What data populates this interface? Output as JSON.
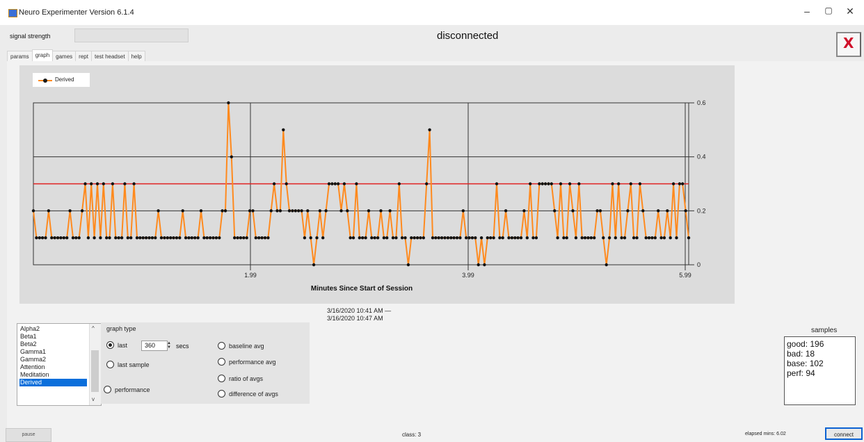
{
  "window": {
    "title": "Neuro Experimenter Version 6.1.4"
  },
  "header": {
    "signal_label": "signal strength",
    "status": "disconnected"
  },
  "tabs": [
    {
      "label": "params"
    },
    {
      "label": "graph"
    },
    {
      "label": "games"
    },
    {
      "label": "rept"
    },
    {
      "label": "test headset"
    },
    {
      "label": "help"
    }
  ],
  "legend": {
    "label": "Derived"
  },
  "date_range": {
    "start": "3/16/2020 10:41 AM —",
    "end": "3/16/2020 10:47 AM"
  },
  "signal_list": {
    "items": [
      "Alpha2",
      "Beta1",
      "Beta2",
      "Gamma1",
      "Gamma2",
      "Attention",
      "Meditation",
      "Derived"
    ],
    "selected": "Derived"
  },
  "graph_type": {
    "title": "graph type",
    "last_label": "last",
    "last_value": "360",
    "secs_label": "secs",
    "last_sample_label": "last sample",
    "performance_label": "performance",
    "baseline_avg_label": "baseline avg",
    "performance_avg_label": "performance avg",
    "ratio_label": "ratio of avgs",
    "difference_label": "difference of avgs",
    "selected": "last"
  },
  "samples": {
    "title": "samples",
    "good": "good: 196",
    "bad": "bad:  18",
    "base": "base: 102",
    "perf": "perf: 94"
  },
  "footer": {
    "pause_label": "pause",
    "class_label": "class:  3",
    "elapsed_label": "elapsed mins: 6.02",
    "connect_label": "connect"
  },
  "chart_data": {
    "type": "line",
    "xlabel": "Minutes Since Start of Session",
    "x_ticks": [
      "1.99",
      "3.99",
      "5.99"
    ],
    "y_ticks": [
      "0.6",
      "0.4",
      "0.2",
      "0"
    ],
    "ylim": [
      0,
      0.6
    ],
    "grid": true,
    "series_color": "#ff8a1e",
    "threshold": {
      "value": 0.3,
      "color": "#e02020"
    },
    "series": [
      {
        "name": "Derived",
        "values": [
          0.2,
          0.1,
          0.1,
          0.1,
          0.1,
          0.2,
          0.1,
          0.1,
          0.1,
          0.1,
          0.1,
          0.1,
          0.2,
          0.1,
          0.1,
          0.1,
          0.2,
          0.3,
          0.1,
          0.3,
          0.1,
          0.3,
          0.1,
          0.3,
          0.1,
          0.1,
          0.3,
          0.1,
          0.1,
          0.1,
          0.3,
          0.1,
          0.1,
          0.3,
          0.1,
          0.1,
          0.1,
          0.1,
          0.1,
          0.1,
          0.1,
          0.2,
          0.1,
          0.1,
          0.1,
          0.1,
          0.1,
          0.1,
          0.1,
          0.2,
          0.1,
          0.1,
          0.1,
          0.1,
          0.1,
          0.2,
          0.1,
          0.1,
          0.1,
          0.1,
          0.1,
          0.1,
          0.2,
          0.2,
          0.6,
          0.4,
          0.1,
          0.1,
          0.1,
          0.1,
          0.1,
          0.2,
          0.2,
          0.1,
          0.1,
          0.1,
          0.1,
          0.1,
          0.2,
          0.3,
          0.2,
          0.2,
          0.5,
          0.3,
          0.2,
          0.2,
          0.2,
          0.2,
          0.2,
          0.1,
          0.2,
          0.1,
          0.0,
          0.1,
          0.2,
          0.1,
          0.2,
          0.3,
          0.3,
          0.3,
          0.3,
          0.2,
          0.3,
          0.2,
          0.1,
          0.1,
          0.3,
          0.1,
          0.1,
          0.1,
          0.2,
          0.1,
          0.1,
          0.1,
          0.2,
          0.1,
          0.1,
          0.2,
          0.1,
          0.1,
          0.3,
          0.1,
          0.1,
          0.0,
          0.1,
          0.1,
          0.1,
          0.1,
          0.1,
          0.3,
          0.5,
          0.1,
          0.1,
          0.1,
          0.1,
          0.1,
          0.1,
          0.1,
          0.1,
          0.1,
          0.1,
          0.2,
          0.1,
          0.1,
          0.1,
          0.1,
          0.0,
          0.1,
          0.0,
          0.1,
          0.1,
          0.1,
          0.3,
          0.1,
          0.1,
          0.2,
          0.1,
          0.1,
          0.1,
          0.1,
          0.1,
          0.2,
          0.1,
          0.3,
          0.1,
          0.1,
          0.3,
          0.3,
          0.3,
          0.3,
          0.3,
          0.2,
          0.1,
          0.3,
          0.1,
          0.1,
          0.3,
          0.2,
          0.1,
          0.3,
          0.1,
          0.1,
          0.1,
          0.1,
          0.1,
          0.2,
          0.2,
          0.1,
          0.0,
          0.1,
          0.3,
          0.1,
          0.3,
          0.1,
          0.1,
          0.2,
          0.3,
          0.1,
          0.1,
          0.3,
          0.2,
          0.1,
          0.1,
          0.1,
          0.1,
          0.2,
          0.1,
          0.1,
          0.2,
          0.1,
          0.3,
          0.1,
          0.3,
          0.3,
          0.2,
          0.1
        ]
      }
    ]
  }
}
